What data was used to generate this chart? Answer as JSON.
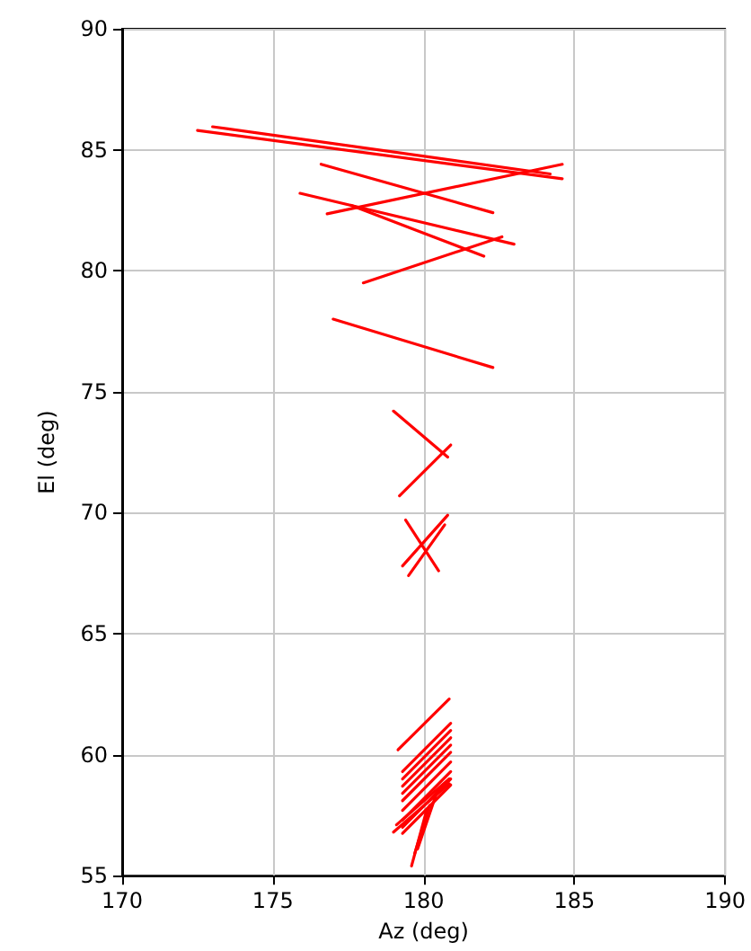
{
  "chart_data": {
    "type": "line",
    "xlabel": "Az (deg)",
    "ylabel": "El (deg)",
    "xlim": [
      170,
      190
    ],
    "xticks": [
      170,
      175,
      180,
      185,
      190
    ],
    "ylim": [
      55,
      90
    ],
    "yticks": [
      55,
      60,
      65,
      70,
      75,
      80,
      85,
      90
    ],
    "grid": true,
    "marker": "none",
    "line_style": "solid",
    "series": [
      {
        "color": "#ff0000",
        "x": [
          172.5,
          184.6
        ],
        "values": [
          85.8,
          83.8
        ]
      },
      {
        "color": "#ff0000",
        "x": [
          173,
          184.2
        ],
        "values": [
          85.95,
          84.0
        ]
      },
      {
        "color": "#ff0000",
        "x": [
          176.6,
          182.3
        ],
        "values": [
          84.4,
          82.4
        ]
      },
      {
        "color": "#ff0000",
        "x": [
          176.8,
          184.6
        ],
        "values": [
          82.35,
          84.4
        ]
      },
      {
        "color": "#ff0000",
        "x": [
          175.9,
          183.0
        ],
        "values": [
          83.2,
          81.1
        ]
      },
      {
        "color": "#ff0000",
        "x": [
          177.6,
          182.0
        ],
        "values": [
          82.7,
          80.6
        ]
      },
      {
        "color": "#ff0000",
        "x": [
          178.0,
          182.6
        ],
        "values": [
          79.5,
          81.4
        ]
      },
      {
        "color": "#ff0000",
        "x": [
          177.0,
          182.3
        ],
        "values": [
          78.0,
          76.0
        ]
      },
      {
        "color": "#ff0000",
        "x": [
          179.0,
          180.8
        ],
        "values": [
          74.2,
          72.3
        ]
      },
      {
        "color": "#ff0000",
        "x": [
          179.2,
          180.9
        ],
        "values": [
          70.7,
          72.8
        ]
      },
      {
        "color": "#ff0000",
        "x": [
          179.4,
          180.5
        ],
        "values": [
          69.7,
          67.6
        ]
      },
      {
        "color": "#ff0000",
        "x": [
          179.3,
          180.8
        ],
        "values": [
          67.8,
          69.9
        ]
      },
      {
        "color": "#ff0000",
        "x": [
          179.5,
          180.7
        ],
        "values": [
          67.4,
          69.5
        ]
      },
      {
        "color": "#ff0000",
        "x": [
          179.15,
          180.85
        ],
        "values": [
          60.2,
          62.3
        ]
      },
      {
        "color": "#ff0000",
        "x": [
          179.3,
          180.9
        ],
        "values": [
          59.3,
          61.3
        ]
      },
      {
        "color": "#ff0000",
        "x": [
          179.3,
          180.9
        ],
        "values": [
          59.0,
          61.0
        ]
      },
      {
        "color": "#ff0000",
        "x": [
          179.3,
          180.9
        ],
        "values": [
          58.7,
          60.7
        ]
      },
      {
        "color": "#ff0000",
        "x": [
          179.3,
          180.9
        ],
        "values": [
          58.4,
          60.4
        ]
      },
      {
        "color": "#ff0000",
        "x": [
          179.3,
          180.9
        ],
        "values": [
          58.1,
          60.1
        ]
      },
      {
        "color": "#ff0000",
        "x": [
          179.3,
          180.9
        ],
        "values": [
          57.7,
          59.7
        ]
      },
      {
        "color": "#ff0000",
        "x": [
          179.3,
          180.9
        ],
        "values": [
          57.3,
          59.3
        ]
      },
      {
        "color": "#ff0000",
        "x": [
          179.3,
          180.9
        ],
        "values": [
          57.0,
          59.0
        ]
      },
      {
        "color": "#ff0000",
        "x": [
          179.3,
          180.9
        ],
        "values": [
          56.75,
          58.75
        ]
      },
      {
        "color": "#ff0000",
        "x": [
          179.0,
          180.85
        ],
        "values": [
          56.8,
          58.8
        ]
      },
      {
        "color": "#ff0000",
        "x": [
          179.1,
          180.85
        ],
        "values": [
          57.1,
          59.0
        ]
      },
      {
        "color": "#ff0000",
        "x": [
          179.7,
          180.2
        ],
        "values": [
          55.9,
          57.9
        ]
      },
      {
        "color": "#ff0000",
        "x": [
          179.6,
          180.1
        ],
        "values": [
          55.4,
          57.7
        ]
      },
      {
        "color": "#ff0000",
        "x": [
          179.8,
          180.4
        ],
        "values": [
          56.1,
          58.3
        ]
      }
    ]
  }
}
